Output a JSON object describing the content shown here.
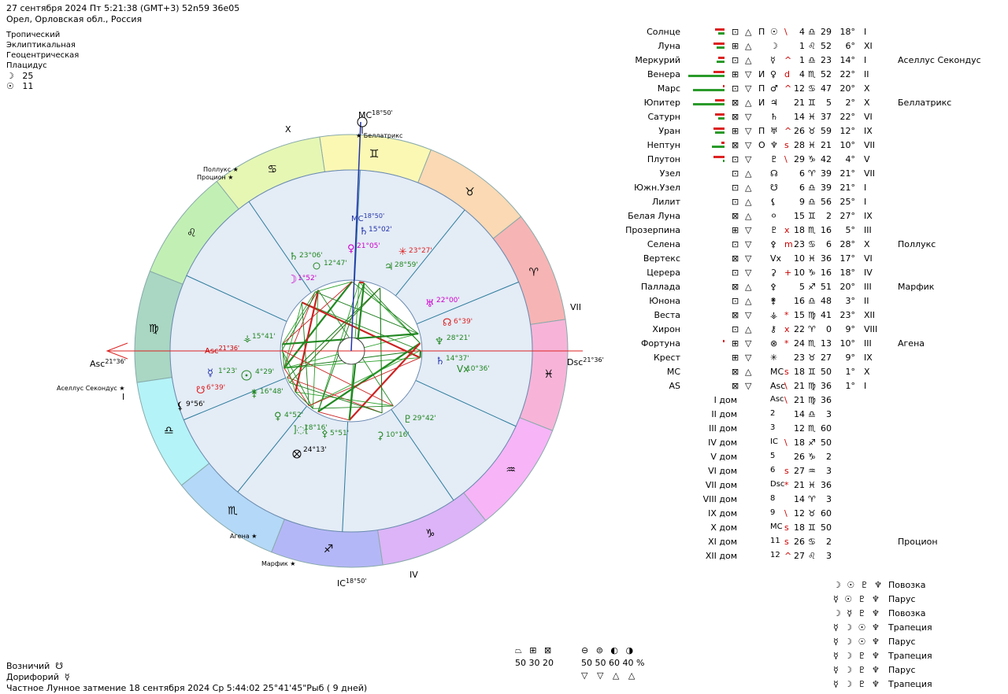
{
  "header": {
    "line1": "27 сентября 2024  Пт   5:21:38 (GMT+3) 52n59  36e05",
    "line2": "Орел, Орловская обл., Россия"
  },
  "system": {
    "zodiac": "Тропический",
    "coords": "Эклиптикальная",
    "center": "Геоцентрическая",
    "houses": "Плацидус",
    "moon_day_symbol": "☽",
    "moon_day": "25",
    "sun_day_symbol": "☉",
    "sun_day": "11"
  },
  "wheel": {
    "sign_glyphs": [
      "♈",
      "♉",
      "♊",
      "♋",
      "♌",
      "♍",
      "♎",
      "♏",
      "♐",
      "♑",
      "♒",
      "♓"
    ],
    "sign_colors": [
      "#f7b4b4",
      "#fad9b4",
      "#fbf8b4",
      "#e6f7b4",
      "#c2f0b4",
      "#a9d7c3",
      "#b4f3f7",
      "#b4d8f7",
      "#b4b7f7",
      "#dcb4f7",
      "#f7b4f7",
      "#f7b4d8"
    ],
    "axis_labels": {
      "asc": "Asc",
      "asc_deg": "21°36'",
      "dsc": "Dsc",
      "dsc_deg": "21°36'",
      "mc": "MC",
      "mc_deg": "18°50'",
      "ic": "IC",
      "ic_deg": "18°50'",
      "inner_asc": "Asc",
      "inner_asc_deg": "21°36'",
      "inner_mc": "MC",
      "inner_mc_deg": "18°50'"
    },
    "house_labels": {
      "h1": "I",
      "h4": "IV",
      "h7": "VII",
      "h10": "X"
    },
    "stars": {
      "s1": "Беллатрикс",
      "s2": "Поллукс",
      "s3": "Процион",
      "s4": "Аселлус Секондус",
      "s5": "Агена",
      "s6": "Марфик"
    },
    "planet_labels": {
      "p1": "15°02'",
      "p2": "21°05'",
      "p3": "23°27'",
      "p4": "28°59'",
      "p5": "23°06'",
      "p6": "12°47'",
      "p7": "1°52'",
      "p8": "22°00'",
      "p9": "6°39'",
      "p10": "28°21'",
      "p11": "14°37'",
      "p12": "10°36'",
      "p13": "15°41'",
      "p14": "1°23'",
      "p15": "4°29'",
      "p16": "6°39'",
      "p17": "16°48'",
      "p18": "9°56'",
      "p19": "4°52'",
      "p20": "18°16'",
      "p21": "5°51'",
      "p22": "24°13'",
      "p23": "29°42'",
      "p24": "10°16'"
    }
  },
  "planets": [
    {
      "name": "Солнце",
      "q": "⊡",
      "e": "△",
      "m": "П",
      "g": "☉",
      "a": "\\",
      "p": "4",
      "s": "♎",
      "d": "29",
      "deg": "18°",
      "h": "I",
      "star": "",
      "b1": 12,
      "b2": 8
    },
    {
      "name": "Луна",
      "q": "⊞",
      "e": "△",
      "m": "",
      "g": "☽",
      "a": "",
      "p": "1",
      "s": "♌",
      "d": "52",
      "deg": "6°",
      "h": "XI",
      "star": "",
      "b1": 14,
      "b2": 10
    },
    {
      "name": "Меркурий",
      "q": "⊡",
      "e": "△",
      "m": "",
      "g": "☿",
      "a": "^",
      "p": "1",
      "s": "♎",
      "d": "23",
      "deg": "14°",
      "h": "I",
      "star": "Аселлус Секондус",
      "b1": 8,
      "b2": 10
    },
    {
      "name": "Венера",
      "q": "⊞",
      "e": "▽",
      "m": "И",
      "g": "♀",
      "a": "d",
      "p": "4",
      "s": "♏",
      "d": "52",
      "deg": "22°",
      "h": "II",
      "star": "",
      "b1": 14,
      "b2": 46
    },
    {
      "name": "Марс",
      "q": "⊡",
      "e": "▽",
      "m": "П",
      "g": "♂",
      "a": "^",
      "p": "12",
      "s": "♋",
      "d": "47",
      "deg": "20°",
      "h": "X",
      "star": "",
      "b1": 2,
      "b2": 40
    },
    {
      "name": "Юпитер",
      "q": "⊠",
      "e": "△",
      "m": "И",
      "g": "♃",
      "a": "",
      "p": "21",
      "s": "♊",
      "d": "5",
      "deg": "2°",
      "h": "X",
      "star": "Беллатрикс",
      "b1": 12,
      "b2": 40
    },
    {
      "name": "Сатурн",
      "q": "⊠",
      "e": "▽",
      "m": "",
      "g": "♄",
      "a": "",
      "p": "14",
      "s": "♓",
      "d": "37",
      "deg": "22°",
      "h": "VI",
      "star": "",
      "b1": 12,
      "b2": 8
    },
    {
      "name": "Уран",
      "q": "⊞",
      "e": "▽",
      "m": "П",
      "g": "♅",
      "a": "^",
      "p": "26",
      "s": "♉",
      "d": "59",
      "deg": "12°",
      "h": "IX",
      "star": "",
      "b1": 14,
      "b2": 12
    },
    {
      "name": "Нептун",
      "q": "⊠",
      "e": "▽",
      "m": "О",
      "g": "♆",
      "a": "s",
      "p": "28",
      "s": "♓",
      "d": "21",
      "deg": "10°",
      "h": "VII",
      "star": "",
      "b1": 4,
      "b2": 16
    },
    {
      "name": "Плутон",
      "q": "⊡",
      "e": "▽",
      "m": "",
      "g": "♇",
      "a": "\\",
      "p": "29",
      "s": "♑",
      "d": "42",
      "deg": "4°",
      "h": "V",
      "star": "",
      "b1": 14,
      "b2": 2
    },
    {
      "name": "Узел",
      "q": "⊡",
      "e": "△",
      "m": "",
      "g": "☊",
      "a": "",
      "p": "6",
      "s": "♈",
      "d": "39",
      "deg": "21°",
      "h": "VII",
      "star": "",
      "b1": 0,
      "b2": 0
    },
    {
      "name": "Южн.Узел",
      "q": "⊡",
      "e": "△",
      "m": "",
      "g": "☋",
      "a": "",
      "p": "6",
      "s": "♎",
      "d": "39",
      "deg": "21°",
      "h": "I",
      "star": "",
      "b1": 0,
      "b2": 0
    },
    {
      "name": "Лилит",
      "q": "⊡",
      "e": "△",
      "m": "",
      "g": "⚸",
      "a": "",
      "p": "9",
      "s": "♎",
      "d": "56",
      "deg": "25°",
      "h": "I",
      "star": "",
      "b1": 0,
      "b2": 0
    },
    {
      "name": "Белая Луна",
      "q": "⊠",
      "e": "△",
      "m": "",
      "g": "⚪",
      "a": "",
      "p": "15",
      "s": "♊",
      "d": "2",
      "deg": "27°",
      "h": "IX",
      "star": "",
      "b1": 0,
      "b2": 0
    },
    {
      "name": "Прозерпина",
      "q": "⊞",
      "e": "▽",
      "m": "",
      "g": "♇",
      "a": "x",
      "p": "18",
      "s": "♏",
      "d": "16",
      "deg": "5°",
      "h": "III",
      "star": "",
      "b1": 0,
      "b2": 0
    },
    {
      "name": "Селена",
      "q": "⊡",
      "e": "▽",
      "m": "",
      "g": "⚴",
      "a": "m",
      "p": "23",
      "s": "♋",
      "d": "6",
      "deg": "28°",
      "h": "X",
      "star": "Поллукс",
      "b1": 0,
      "b2": 0
    },
    {
      "name": "Вертекс",
      "q": "⊠",
      "e": "▽",
      "m": "",
      "g": "Vx",
      "a": "",
      "p": "10",
      "s": "♓",
      "d": "36",
      "deg": "17°",
      "h": "VI",
      "star": "",
      "b1": 0,
      "b2": 0
    },
    {
      "name": "Церера",
      "q": "⊡",
      "e": "▽",
      "m": "",
      "g": "⚳",
      "a": "+",
      "p": "10",
      "s": "♑",
      "d": "16",
      "deg": "18°",
      "h": "IV",
      "star": "",
      "b1": 0,
      "b2": 0
    },
    {
      "name": "Паллада",
      "q": "⊠",
      "e": "△",
      "m": "",
      "g": "⚴",
      "a": "",
      "p": "5",
      "s": "♐",
      "d": "51",
      "deg": "20°",
      "h": "III",
      "star": "Марфик",
      "b1": 0,
      "b2": 0
    },
    {
      "name": "Юнона",
      "q": "⊡",
      "e": "△",
      "m": "",
      "g": "⚵",
      "a": "",
      "p": "16",
      "s": "♎",
      "d": "48",
      "deg": "3°",
      "h": "II",
      "star": "",
      "b1": 0,
      "b2": 0
    },
    {
      "name": "Веста",
      "q": "⊠",
      "e": "▽",
      "m": "",
      "g": "⚶",
      "a": "*",
      "p": "15",
      "s": "♍",
      "d": "41",
      "deg": "23°",
      "h": "XII",
      "star": "",
      "b1": 0,
      "b2": 0
    },
    {
      "name": "Хирон",
      "q": "⊡",
      "e": "△",
      "m": "",
      "g": "⚷",
      "a": "x",
      "p": "22",
      "s": "♈",
      "d": "0",
      "deg": "9°",
      "h": "VIII",
      "star": "",
      "b1": 0,
      "b2": 0
    },
    {
      "name": "Фортуна",
      "q": "⊞",
      "e": "▽",
      "m": "",
      "g": "⊗",
      "a": "*",
      "p": "24",
      "s": "♏",
      "d": "13",
      "deg": "10°",
      "h": "III",
      "star": "Агена",
      "b1": 2,
      "b2": 0
    },
    {
      "name": "Крест",
      "q": "⊞",
      "e": "▽",
      "m": "",
      "g": "✳",
      "a": "",
      "p": "23",
      "s": "♉",
      "d": "27",
      "deg": "9°",
      "h": "IX",
      "star": "",
      "b1": 0,
      "b2": 0
    },
    {
      "name": "MC",
      "q": "⊠",
      "e": "△",
      "m": "",
      "g": "MC",
      "a": "s",
      "p": "18",
      "s": "♊",
      "d": "50",
      "deg": "1°",
      "h": "X",
      "star": "",
      "b1": 0,
      "b2": 0
    },
    {
      "name": "AS",
      "q": "⊠",
      "e": "▽",
      "m": "",
      "g": "Asc",
      "a": "\\",
      "p": "21",
      "s": "♍",
      "d": "36",
      "deg": "1°",
      "h": "I",
      "star": "",
      "b1": 0,
      "b2": 0
    }
  ],
  "houses": [
    {
      "name": "I дом",
      "g": "Asc",
      "a": "\\",
      "p": "21",
      "s": "♍",
      "d": "36",
      "star": ""
    },
    {
      "name": "II дом",
      "g": "2",
      "a": "",
      "p": "14",
      "s": "♎",
      "d": "3",
      "star": ""
    },
    {
      "name": "III дом",
      "g": "3",
      "a": "",
      "p": "12",
      "s": "♏",
      "d": "60",
      "star": ""
    },
    {
      "name": "IV дом",
      "g": "IC",
      "a": "\\",
      "p": "18",
      "s": "♐",
      "d": "50",
      "star": ""
    },
    {
      "name": "V дом",
      "g": "5",
      "a": "",
      "p": "26",
      "s": "♑",
      "d": "2",
      "star": ""
    },
    {
      "name": "VI дом",
      "g": "6",
      "a": "s",
      "p": "27",
      "s": "♒",
      "d": "3",
      "star": ""
    },
    {
      "name": "VII дом",
      "g": "Dsc",
      "a": "*",
      "p": "21",
      "s": "♓",
      "d": "36",
      "star": ""
    },
    {
      "name": "VIII дом",
      "g": "8",
      "a": "",
      "p": "14",
      "s": "♈",
      "d": "3",
      "star": ""
    },
    {
      "name": "IX дом",
      "g": "9",
      "a": "\\",
      "p": "12",
      "s": "♉",
      "d": "60",
      "star": ""
    },
    {
      "name": "X дом",
      "g": "MC",
      "a": "s",
      "p": "18",
      "s": "♊",
      "d": "50",
      "star": ""
    },
    {
      "name": "XI дом",
      "g": "11",
      "a": "s",
      "p": "26",
      "s": "♋",
      "d": "2",
      "star": "Процион"
    },
    {
      "name": "XII дом",
      "g": "12",
      "a": "^",
      "p": "27",
      "s": "♌",
      "d": "3",
      "star": ""
    }
  ],
  "configurations": [
    {
      "glyphs": "☽ ☉ ♇ ♆",
      "name": "Повозка"
    },
    {
      "glyphs": "☿ ☉ ♇ ♆",
      "name": "Парус"
    },
    {
      "glyphs": "☽ ☿ ♇ ♆",
      "name": "Повозка"
    },
    {
      "glyphs": "☿ ☽ ☉ ♆",
      "name": "Трапеция"
    },
    {
      "glyphs": "☿ ☽ ☉ ♆",
      "name": "Парус"
    },
    {
      "glyphs": "☿ ☽ ♇ ♆",
      "name": "Трапеция"
    },
    {
      "glyphs": "☿ ☽ ♇ ♆",
      "name": "Парус"
    },
    {
      "glyphs": "☿ ☽ ♇ ♆",
      "name": "Трапеция"
    }
  ],
  "stats": {
    "cross_glyphs": "⏢ ⊞ ⊠",
    "cross_values": "50  30  20",
    "elem_glyphs": "⊖ ⊜ ◐ ◑",
    "elem_values": "50  50  60  40 %",
    "tri_glyphs": "▽ ▽ △ △"
  },
  "footer": {
    "l1_label": "Возничий",
    "l1_glyph": "☋",
    "l2_label": "Дорифорий",
    "l2_glyph": "☿",
    "l3": "Частное Лунное затмение 18 сентября 2024 Ср  5:44:02 25°41'45\"Рыб ( 9 дней)"
  }
}
